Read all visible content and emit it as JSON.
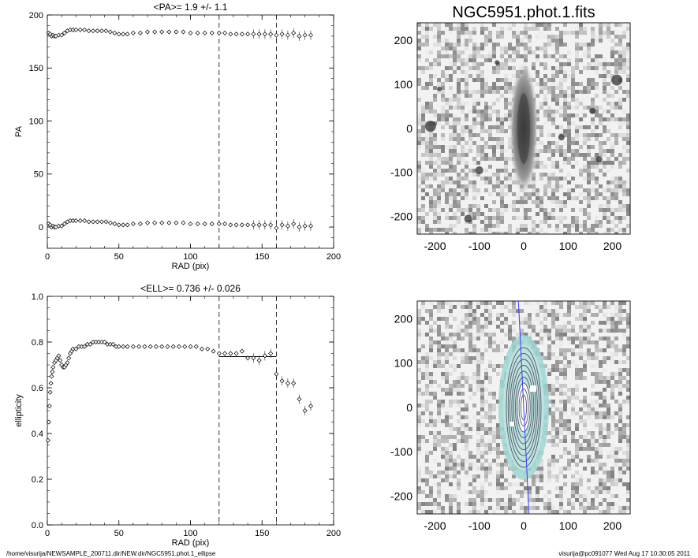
{
  "footer": {
    "left": "/home/visurija/NEWSAMPLE_200711.dir/NEW.dir/NGC5951.phot.1_ellipse",
    "right": "visurija@pc091077  Wed Aug 17 10:30:05 2011"
  },
  "chart_data": [
    {
      "type": "scatter",
      "title": "<PA>=   1.9 +/-   1.1",
      "xlabel": "RAD (pix)",
      "ylabel": "PA",
      "xlim": [
        0,
        200
      ],
      "ylim": [
        -20,
        200
      ],
      "xticks": [
        "0",
        "50",
        "100",
        "150",
        "200"
      ],
      "yticks": [
        "0",
        "50",
        "100",
        "150",
        "200"
      ],
      "vlines": [
        120,
        160
      ],
      "grid": false,
      "series": [
        {
          "x": [
            1,
            2,
            3,
            4,
            5,
            6,
            8,
            10,
            12,
            14,
            16,
            18,
            20,
            23,
            26,
            29,
            32,
            35,
            38,
            41,
            44,
            47,
            50,
            53,
            56,
            60,
            65,
            70,
            75,
            80,
            85,
            90,
            95,
            100,
            105,
            110,
            115,
            120,
            124,
            128,
            132,
            136,
            140,
            144,
            148,
            152,
            156,
            160,
            164,
            168,
            172,
            176,
            180,
            184
          ],
          "y": [
            183,
            182,
            180,
            181,
            180,
            180,
            181,
            181,
            183,
            185,
            186,
            186,
            186,
            186,
            186,
            185,
            185,
            185,
            185,
            185,
            184,
            183,
            182,
            182,
            182,
            183,
            183,
            184,
            184,
            184,
            184,
            184,
            184,
            183,
            183,
            183,
            183,
            183,
            183,
            182,
            182,
            182,
            182,
            182,
            182,
            182,
            182,
            181,
            182,
            181,
            183,
            180,
            181,
            181
          ]
        },
        {
          "x": [
            1,
            2,
            3,
            4,
            5,
            6,
            8,
            10,
            12,
            14,
            16,
            18,
            20,
            23,
            26,
            29,
            32,
            35,
            38,
            41,
            44,
            47,
            50,
            53,
            56,
            60,
            65,
            70,
            75,
            80,
            85,
            90,
            95,
            100,
            105,
            110,
            115,
            120,
            124,
            128,
            132,
            136,
            140,
            144,
            148,
            152,
            156,
            160,
            164,
            168,
            172,
            176,
            180,
            184
          ],
          "y": [
            3,
            2,
            0,
            1,
            0,
            0,
            1,
            1,
            3,
            5,
            6,
            6,
            6,
            6,
            6,
            5,
            5,
            5,
            5,
            5,
            4,
            3,
            2,
            2,
            2,
            3,
            3,
            4,
            4,
            4,
            4,
            4,
            4,
            3,
            3,
            3,
            3,
            3,
            3,
            2,
            2,
            2,
            2,
            2,
            2,
            2,
            2,
            -1,
            2,
            1,
            3,
            0,
            1,
            1
          ]
        }
      ]
    },
    {
      "type": "scatter",
      "title": "<ELL>= 0.736 +/-  0.026",
      "xlabel": "RAD (pix)",
      "ylabel": "ellipticity",
      "xlim": [
        0,
        200
      ],
      "ylim": [
        0,
        1
      ],
      "xticks": [
        "0",
        "50",
        "100",
        "150",
        "200"
      ],
      "yticks": [
        "0.0",
        "0.2",
        "0.4",
        "0.6",
        "0.8",
        "1.0"
      ],
      "vlines": [
        120,
        160
      ],
      "mean_line": {
        "y": 0.736,
        "x_range": [
          120,
          160
        ]
      },
      "grid": false,
      "series": [
        {
          "x": [
            0.5,
            1,
            1.5,
            2,
            2.5,
            3,
            3.5,
            4,
            5,
            6,
            7,
            8,
            9,
            10,
            11,
            12,
            13,
            14,
            15,
            16,
            17,
            18,
            20,
            22,
            24,
            26,
            28,
            30,
            32,
            34,
            36,
            38,
            40,
            42,
            44,
            46,
            48,
            50,
            53,
            56,
            60,
            64,
            68,
            72,
            76,
            80,
            84,
            88,
            92,
            96,
            100,
            104,
            108,
            112,
            116,
            120,
            124,
            128,
            132,
            136,
            140,
            144,
            148,
            152,
            156,
            160,
            164,
            168,
            172,
            176,
            180,
            184
          ],
          "y": [
            0.37,
            0.45,
            0.52,
            0.58,
            0.62,
            0.65,
            0.67,
            0.69,
            0.71,
            0.72,
            0.73,
            0.74,
            0.72,
            0.7,
            0.69,
            0.69,
            0.7,
            0.71,
            0.73,
            0.75,
            0.76,
            0.77,
            0.77,
            0.78,
            0.78,
            0.78,
            0.79,
            0.79,
            0.8,
            0.8,
            0.8,
            0.8,
            0.8,
            0.79,
            0.79,
            0.79,
            0.78,
            0.78,
            0.78,
            0.78,
            0.78,
            0.78,
            0.78,
            0.78,
            0.78,
            0.78,
            0.78,
            0.78,
            0.78,
            0.78,
            0.78,
            0.78,
            0.77,
            0.77,
            0.76,
            0.75,
            0.75,
            0.75,
            0.75,
            0.76,
            0.73,
            0.73,
            0.72,
            0.74,
            0.75,
            0.66,
            0.63,
            0.62,
            0.62,
            0.55,
            0.5,
            0.52
          ]
        }
      ]
    },
    {
      "type": "heatmap",
      "title": "NGC5951.phot.1.fits",
      "xlim": [
        -240,
        240
      ],
      "ylim": [
        -240,
        240
      ],
      "xticks": [
        "-200",
        "-100",
        "0",
        "100",
        "200"
      ],
      "yticks": [
        "-200",
        "-100",
        "0",
        "100",
        "200"
      ]
    },
    {
      "type": "heatmap",
      "title": "",
      "xlim": [
        -240,
        240
      ],
      "ylim": [
        -240,
        240
      ],
      "xticks": [
        "-200",
        "-100",
        "0",
        "100",
        "200"
      ],
      "yticks": [
        "-200",
        "-100",
        "0",
        "100",
        "200"
      ]
    }
  ]
}
